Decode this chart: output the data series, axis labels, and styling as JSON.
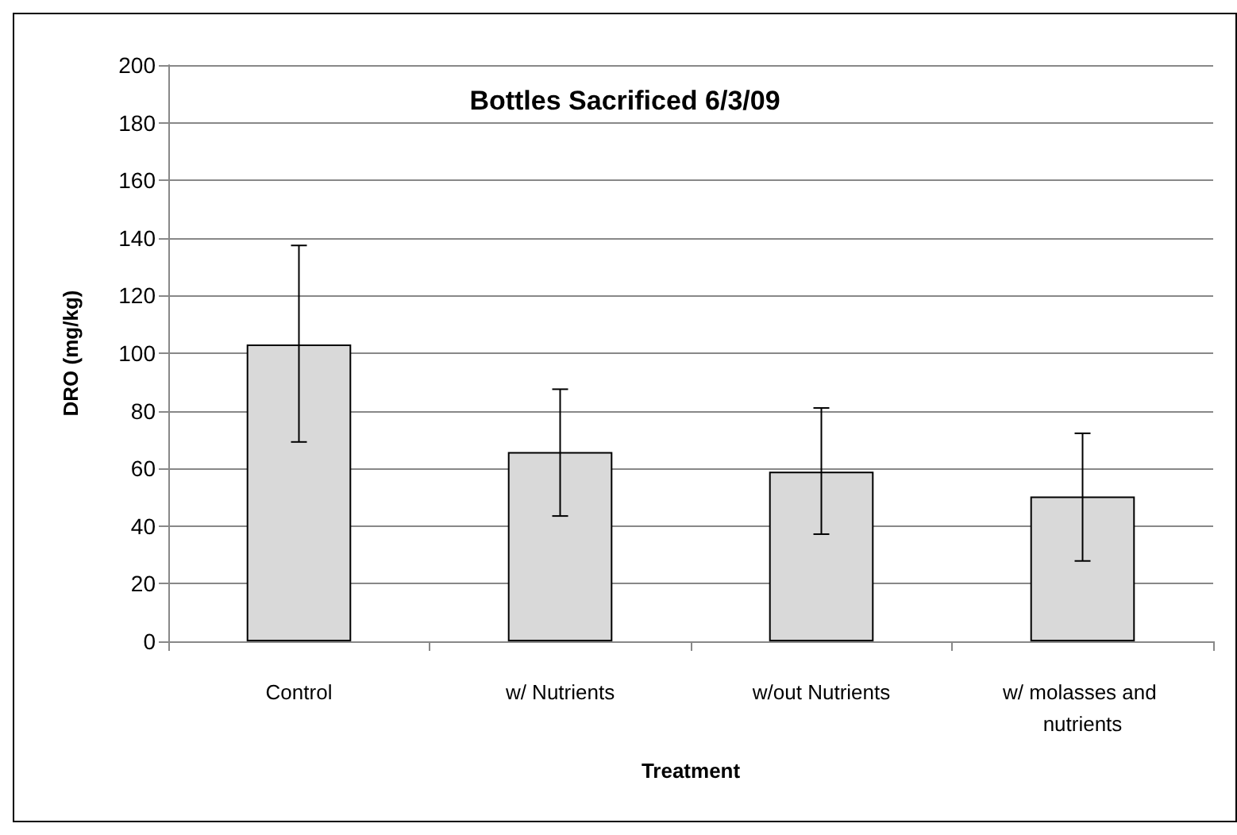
{
  "chart_data": {
    "type": "bar",
    "title": "Bottles Sacrificed 6/3/09",
    "xlabel": "Treatment",
    "ylabel": "DRO (mg/kg)",
    "categories": [
      "Control",
      "w/ Nutrients",
      "w/out Nutrients",
      "w/ molasses and nutrients"
    ],
    "values": [
      103,
      65.7,
      58.9,
      50.3
    ],
    "color": "#d9d9d9",
    "errors": [
      [
        69.2,
        137.4
      ],
      [
        43.5,
        87.5
      ],
      [
        37.2,
        81
      ],
      [
        27.9,
        72.2
      ]
    ],
    "ylim": [
      0,
      200
    ],
    "yticks": [
      0,
      20,
      40,
      60,
      80,
      100,
      120,
      140,
      160,
      180,
      200
    ],
    "grid": "y"
  }
}
